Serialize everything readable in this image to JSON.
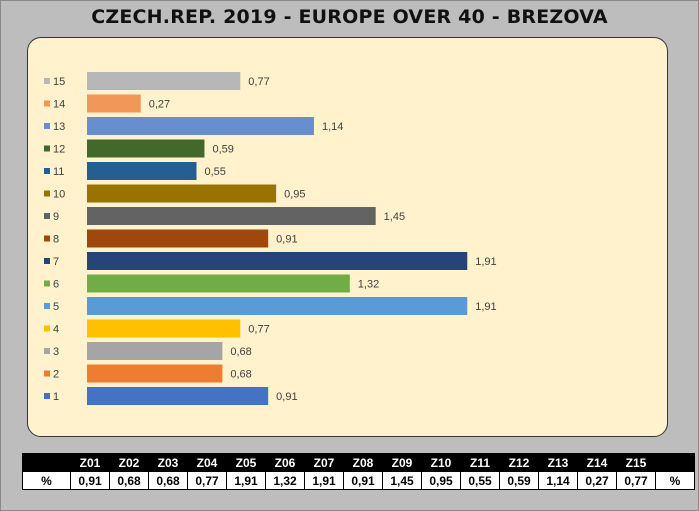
{
  "title": "CZECH.REP. 2019 - EUROPE OVER 40 - BREZOVA",
  "chart_data": {
    "type": "bar",
    "orientation": "horizontal",
    "title": "CZECH.REP. 2019 - EUROPE OVER 40 - BREZOVA",
    "xlabel": "",
    "ylabel": "",
    "grid": false,
    "legend": "none",
    "categories": [
      "1",
      "2",
      "3",
      "4",
      "5",
      "6",
      "7",
      "8",
      "9",
      "10",
      "11",
      "12",
      "13",
      "14",
      "15"
    ],
    "values": [
      0.91,
      0.68,
      0.68,
      0.77,
      1.91,
      1.32,
      1.91,
      0.91,
      1.45,
      0.95,
      0.55,
      0.59,
      1.14,
      0.27,
      0.77
    ],
    "value_labels": [
      "0,91",
      "0,68",
      "0,68",
      "0,77",
      "1,91",
      "1,32",
      "1,91",
      "0,91",
      "1,45",
      "0,95",
      "0,55",
      "0,59",
      "1,14",
      "0,27",
      "0,77"
    ],
    "colors": [
      "#4472c4",
      "#ed7d31",
      "#a5a5a5",
      "#ffc000",
      "#5b9bd5",
      "#70ad47",
      "#264478",
      "#9e480e",
      "#636363",
      "#997300",
      "#255e91",
      "#43682b",
      "#698ed0",
      "#f1975a",
      "#b7b7b7"
    ],
    "xlim": [
      0,
      2.2
    ]
  },
  "table": {
    "corner": "",
    "headers": [
      "Z01",
      "Z02",
      "Z03",
      "Z04",
      "Z05",
      "Z06",
      "Z07",
      "Z08",
      "Z09",
      "Z10",
      "Z11",
      "Z12",
      "Z13",
      "Z14",
      "Z15"
    ],
    "row_label_left": "%",
    "row_label_right": "%",
    "values": [
      "0,91",
      "0,68",
      "0,68",
      "0,77",
      "1,91",
      "1,32",
      "1,91",
      "0,91",
      "1,45",
      "0,95",
      "0,55",
      "0,59",
      "1,14",
      "0,27",
      "0,77"
    ]
  }
}
